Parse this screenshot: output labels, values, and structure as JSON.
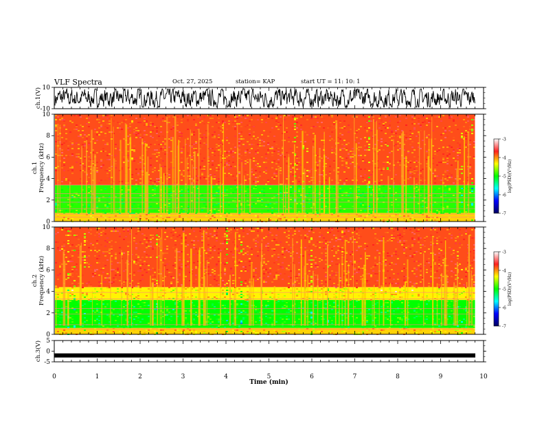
{
  "header": {
    "title": "VLF Spectra",
    "date": "Oct. 27, 2025",
    "station": "station= KAP",
    "start_ut": "start  UT =   11: 10: 1"
  },
  "colorbar": {
    "label": "log(PSD)(V²/Hz)",
    "ticks": [
      "-3",
      "-4",
      "-5",
      "-6",
      "-7"
    ],
    "stops": [
      "#ffffff",
      "#ff2020",
      "#ffff00",
      "#00ff00",
      "#00ffff",
      "#0000ff",
      "#000060"
    ]
  },
  "chart_data": [
    {
      "type": "line",
      "name": "ch1-waveform",
      "ylabel": "ch.1(V)",
      "ylim": [
        -10,
        10
      ],
      "yticks": [
        "10",
        "-10"
      ],
      "xlim": [
        0,
        10
      ],
      "description_values": "dense noisy waveform spanning roughly -8 to 8 V"
    },
    {
      "type": "heatmap",
      "name": "ch1-spectrogram",
      "ylabel": "ch.1\nFrequency  (kHz)",
      "ylim": [
        0,
        10
      ],
      "yticks": [
        "0",
        "2",
        "4",
        "6",
        "8",
        "10"
      ],
      "xlim": [
        0,
        9.8
      ],
      "bands_khz": [
        {
          "from": 0,
          "to": 0.8,
          "level": -4.2
        },
        {
          "from": 0.8,
          "to": 3.4,
          "level": -4.9
        },
        {
          "from": 3.4,
          "to": 10,
          "level": -3.8
        }
      ]
    },
    {
      "type": "heatmap",
      "name": "ch2-spectrogram",
      "ylabel": "ch.2\nFrequency  (kHz)",
      "ylim": [
        0,
        10
      ],
      "yticks": [
        "0",
        "2",
        "4",
        "6",
        "8",
        "10"
      ],
      "xlim": [
        0,
        9.8
      ],
      "bands_khz": [
        {
          "from": 0,
          "to": 0.6,
          "level": -4.2
        },
        {
          "from": 0.6,
          "to": 3.2,
          "level": -5.0
        },
        {
          "from": 3.2,
          "to": 4.4,
          "level": -4.3
        },
        {
          "from": 4.4,
          "to": 10,
          "level": -3.8
        }
      ]
    },
    {
      "type": "line",
      "name": "ch3-waveform",
      "ylabel": "ch.3(V)",
      "ylim": [
        -5,
        5
      ],
      "yticks": [
        "5",
        "0",
        "-5"
      ],
      "xlim": [
        0,
        10
      ],
      "description_values": "nearly constant thick trace at about -2 V"
    }
  ],
  "xaxis": {
    "label": "Time  (min)",
    "ticks": [
      "0",
      "1",
      "2",
      "3",
      "4",
      "5",
      "6",
      "7",
      "8",
      "9",
      "10"
    ],
    "range": [
      0,
      10
    ]
  }
}
